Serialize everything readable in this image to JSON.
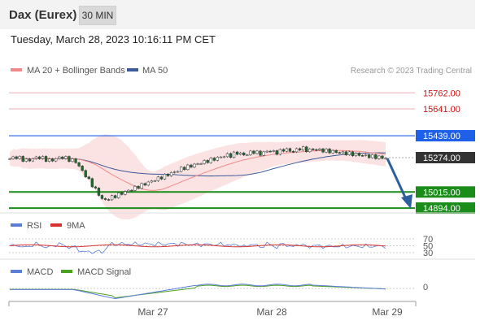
{
  "header": {
    "instrument": "Dax (Eurex)",
    "timeframe": "30 MIN",
    "datetime": "Tuesday, March 28, 2023 10:16:11 PM CET"
  },
  "colors": {
    "bollinger": "#f08a8a",
    "bollinger_fill": "#fbe3e3",
    "ma50": "#3a5a9a",
    "resistance": "#e8b0b0",
    "pivot": "#1f60e8",
    "support": "#1a8c1a",
    "arrow": "#2d5f9e",
    "price_tag": "#333333",
    "rsi": "#5b7fd6",
    "rsi_ma": "#d93030",
    "macd": "#5b7fd6",
    "macd_signal": "#4aa020"
  },
  "main_chart": {
    "legend": [
      {
        "label": "MA 20 + Bollinger Bands",
        "color": "#f08a8a"
      },
      {
        "label": "MA 50",
        "color": "#3a5a9a"
      }
    ],
    "watermark": "Research © 2023 Trading Central",
    "y_range": [
      14870,
      15880
    ],
    "levels": [
      {
        "value": 15762.0,
        "label": "15762.00",
        "kind": "resistance"
      },
      {
        "value": 15641.0,
        "label": "15641.00",
        "kind": "resistance"
      },
      {
        "value": 15439.0,
        "label": "15439.00",
        "kind": "pivot"
      },
      {
        "value": 15274.0,
        "label": "15274.00",
        "kind": "last"
      },
      {
        "value": 15015.0,
        "label": "15015.00",
        "kind": "support"
      },
      {
        "value": 14894.0,
        "label": "14894.00",
        "kind": "support"
      }
    ]
  },
  "rsi_panel": {
    "legend": [
      {
        "label": "RSI",
        "color": "#5b7fd6"
      },
      {
        "label": "9MA",
        "color": "#d93030"
      }
    ],
    "levels": [
      {
        "value": 70,
        "label": "70"
      },
      {
        "value": 50,
        "label": "50"
      },
      {
        "value": 30,
        "label": "30"
      }
    ]
  },
  "macd_panel": {
    "legend": [
      {
        "label": "MACD",
        "color": "#5b7fd6"
      },
      {
        "label": "MACD Signal",
        "color": "#4aa020"
      }
    ],
    "zero_label": "0"
  },
  "x_axis": {
    "labels": [
      "Mar 27",
      "Mar 28",
      "Mar 29"
    ]
  }
}
